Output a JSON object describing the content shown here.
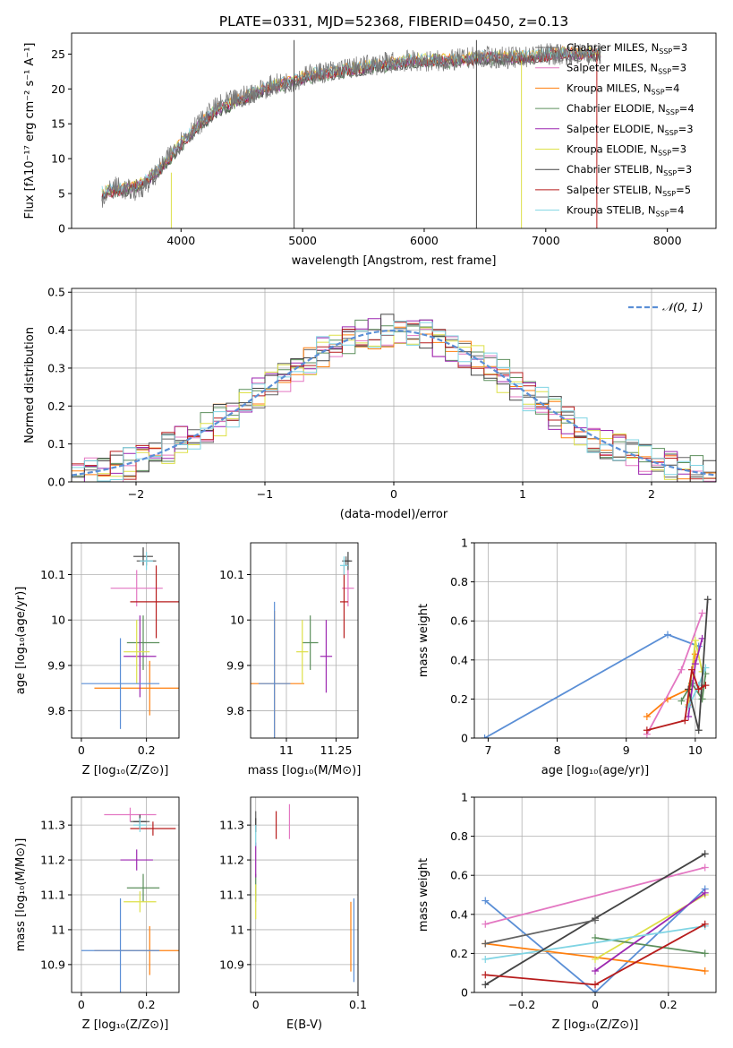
{
  "figure": {
    "title": "PLATE=0331, MJD=52368, FIBERID=0450, z=0.13"
  },
  "colors": {
    "series": [
      "#636363",
      "#e377c2",
      "#ff7f0e",
      "#5c8f5c",
      "#9c27b0",
      "#dde048",
      "#444444",
      "#b71c1c",
      "#7fd4e3"
    ],
    "normal": "#5b8fd6",
    "grid": "#b0b0b0"
  },
  "chart_data": [
    {
      "id": "spectrum",
      "type": "line",
      "title": "PLATE=0331, MJD=52368, FIBERID=0450, z=0.13",
      "xlabel": "wavelength [Angstrom, rest frame]",
      "ylabel": "Flux [fλ10⁻¹⁷ erg cm⁻² s⁻¹ A⁻¹]",
      "xlim": [
        3100,
        8400
      ],
      "ylim": [
        0,
        28
      ],
      "xticks": [
        4000,
        5000,
        6000,
        7000,
        8000
      ],
      "yticks": [
        0,
        5,
        10,
        15,
        20,
        25
      ],
      "grid": false,
      "legend_position": "right",
      "legend": [
        "Chabrier MILES, N_SSP=3",
        "Salpeter MILES, N_SSP=3",
        "Kroupa MILES, N_SSP=4",
        "Chabrier ELODIE, N_SSP=4",
        "Salpeter ELODIE, N_SSP=3",
        "Kroupa ELODIE, N_SSP=3",
        "Chabrier STELIB, N_SSP=3",
        "Salpeter STELIB, N_SSP=5",
        "Kroupa STELIB, N_SSP=4"
      ],
      "data_trace": {
        "x": [
          3350,
          3450,
          3550,
          3650,
          3750,
          3850,
          3950,
          4050,
          4150,
          4300,
          4450,
          4600,
          4750,
          4900,
          5050,
          5200,
          5400,
          5600,
          5800,
          6000,
          6200,
          6400,
          6600,
          6800,
          7000,
          7200,
          7400
        ],
        "y": [
          4.5,
          6.0,
          5.5,
          5.5,
          7.0,
          9.0,
          11.5,
          13.5,
          15.0,
          17.5,
          18.5,
          19.5,
          20.5,
          21.0,
          22.0,
          22.5,
          23.0,
          23.5,
          24.0,
          24.0,
          24.0,
          24.5,
          24.5,
          24.5,
          25.0,
          25.0,
          25.0
        ]
      },
      "model_lines": {
        "x": [
          3350,
          3500,
          3650,
          3800,
          3950,
          4100,
          4300,
          4500,
          4700,
          4900,
          5100,
          5300,
          5500,
          5700,
          5900,
          6100,
          6300,
          6500,
          6700,
          6900,
          7100,
          7300,
          7500
        ],
        "y": [
          5.0,
          5.5,
          6.0,
          8.0,
          11.0,
          14.0,
          17.0,
          18.5,
          20.0,
          21.0,
          22.0,
          22.5,
          23.0,
          23.5,
          24.0,
          24.0,
          24.0,
          24.5,
          24.5,
          24.5,
          25.0,
          25.0,
          25.0
        ]
      },
      "spikes": [
        {
          "x": 3920,
          "ytop": 8,
          "series": 5
        },
        {
          "x": 4930,
          "ytop": 27,
          "series": 6
        },
        {
          "x": 6430,
          "ytop": 27,
          "series": 6
        },
        {
          "x": 6800,
          "ytop": 24,
          "series": 5
        },
        {
          "x": 7420,
          "ytop": 25,
          "series": 7
        }
      ]
    },
    {
      "id": "residuals",
      "type": "step",
      "xlabel": "(data-model)/error",
      "ylabel": "Normed distribution",
      "xlim": [
        -2.5,
        2.5
      ],
      "ylim": [
        0,
        0.51
      ],
      "xticks": [
        -2,
        -1,
        0,
        1,
        2
      ],
      "yticks": [
        0.0,
        0.1,
        0.2,
        0.3,
        0.4,
        0.5
      ],
      "grid": true,
      "legend_position": "top-right",
      "legend": [
        "𝒩(0, 1)"
      ],
      "bin_width": 0.1,
      "bin_start": -2.5
    },
    {
      "id": "age-vs-Z",
      "type": "scatter",
      "xlabel": "Z [log₁₀(Z/Z⊙)]",
      "ylabel": "age  [log₁₀(age/yr)]",
      "xlim": [
        -0.03,
        0.3
      ],
      "ylim": [
        9.74,
        10.17
      ],
      "xticks": [
        0.0,
        0.2
      ],
      "yticks": [
        9.8,
        9.9,
        10.0,
        10.1
      ],
      "grid": true,
      "points": [
        {
          "series": 0,
          "x": 0.2,
          "y": 10.13,
          "xerr": 0.03,
          "yerr": 0.01
        },
        {
          "series": 1,
          "x": 0.17,
          "y": 10.07,
          "xerr": 0.08,
          "yerr": 0.04
        },
        {
          "series": 2,
          "x": 0.21,
          "y": 9.85,
          "xerr": 0.17,
          "yerr": 0.06
        },
        {
          "series": 3,
          "x": 0.19,
          "y": 9.95,
          "xerr": 0.05,
          "yerr": 0.06
        },
        {
          "series": 4,
          "x": 0.18,
          "y": 9.92,
          "xerr": 0.05,
          "yerr": 0.09
        },
        {
          "series": 5,
          "x": 0.17,
          "y": 9.93,
          "xerr": 0.04,
          "yerr": 0.07
        },
        {
          "series": 6,
          "x": 0.19,
          "y": 10.14,
          "xerr": 0.03,
          "yerr": 0.02
        },
        {
          "series": 7,
          "x": 0.23,
          "y": 10.04,
          "xerr": 0.08,
          "yerr": 0.08
        },
        {
          "series": 8,
          "x": 0.2,
          "y": 10.13,
          "xerr": 0.02,
          "yerr": 0.02
        },
        {
          "series": -1,
          "x": 0.12,
          "y": 9.86,
          "xerr": 0.12,
          "yerr": 0.1
        }
      ]
    },
    {
      "id": "age-vs-mass",
      "type": "scatter",
      "xlabel": "mass [log₁₀(M/M⊙)]",
      "ylabel": "",
      "xlim": [
        10.82,
        11.36
      ],
      "ylim": [
        9.74,
        10.17
      ],
      "xticks": [
        11.0,
        11.25
      ],
      "yticks": [
        9.8,
        9.9,
        10.0,
        10.1
      ],
      "grid": true,
      "points": [
        {
          "series": 0,
          "x": 11.3,
          "y": 10.13,
          "xerr": 0.02,
          "yerr": 0.01
        },
        {
          "series": 1,
          "x": 11.31,
          "y": 10.07,
          "xerr": 0.03,
          "yerr": 0.04
        },
        {
          "series": 2,
          "x": 10.94,
          "y": 9.86,
          "xerr": 0.15,
          "yerr": 0.16
        },
        {
          "series": 3,
          "x": 11.12,
          "y": 9.95,
          "xerr": 0.04,
          "yerr": 0.06
        },
        {
          "series": 4,
          "x": 11.2,
          "y": 9.92,
          "xerr": 0.03,
          "yerr": 0.08
        },
        {
          "series": 5,
          "x": 11.08,
          "y": 9.93,
          "xerr": 0.03,
          "yerr": 0.07
        },
        {
          "series": 6,
          "x": 11.31,
          "y": 10.13,
          "xerr": 0.02,
          "yerr": 0.02
        },
        {
          "series": 7,
          "x": 11.29,
          "y": 10.04,
          "xerr": 0.02,
          "yerr": 0.08
        },
        {
          "series": 8,
          "x": 11.29,
          "y": 10.12,
          "xerr": 0.02,
          "yerr": 0.02
        },
        {
          "series": -1,
          "x": 10.94,
          "y": 9.86,
          "xerr": 0.08,
          "yerr": 0.18
        }
      ]
    },
    {
      "id": "mass-weight-vs-age",
      "type": "line",
      "xlabel": "age  [log₁₀(age/yr)]",
      "ylabel": "mass weight",
      "xlim": [
        6.8,
        10.3
      ],
      "ylim": [
        0,
        1.0
      ],
      "xticks": [
        7,
        8,
        9,
        10
      ],
      "yticks": [
        0.0,
        0.2,
        0.4,
        0.6,
        0.8,
        1.0
      ],
      "grid": true,
      "series": [
        {
          "series": -1,
          "x": [
            6.95,
            9.6,
            10.05
          ],
          "y": [
            0.0,
            0.53,
            0.47
          ]
        },
        {
          "series": 2,
          "x": [
            9.3,
            9.6,
            9.9,
            10.0
          ],
          "y": [
            0.11,
            0.2,
            0.25,
            0.43
          ]
        },
        {
          "series": 1,
          "x": [
            9.3,
            9.8,
            10.1
          ],
          "y": [
            0.02,
            0.35,
            0.64
          ]
        },
        {
          "series": 5,
          "x": [
            9.9,
            10.0,
            10.1
          ],
          "y": [
            0.17,
            0.5,
            0.34
          ]
        },
        {
          "series": 3,
          "x": [
            9.8,
            9.95,
            10.1,
            10.15
          ],
          "y": [
            0.19,
            0.28,
            0.2,
            0.33
          ]
        },
        {
          "series": 4,
          "x": [
            9.9,
            10.0,
            10.1
          ],
          "y": [
            0.11,
            0.38,
            0.51
          ]
        },
        {
          "series": 8,
          "x": [
            9.9,
            10.05,
            10.15
          ],
          "y": [
            0.16,
            0.27,
            0.36
          ]
        },
        {
          "series": 6,
          "x": [
            9.9,
            10.05,
            10.18
          ],
          "y": [
            0.25,
            0.04,
            0.71
          ]
        },
        {
          "series": 7,
          "x": [
            9.3,
            9.85,
            9.95,
            10.05,
            10.15
          ],
          "y": [
            0.04,
            0.09,
            0.35,
            0.25,
            0.27
          ]
        }
      ]
    },
    {
      "id": "mass-vs-Z",
      "type": "scatter",
      "xlabel": "Z [log₁₀(Z/Z⊙)]",
      "ylabel": "mass [log₁₀(M/M⊙)]",
      "xlim": [
        -0.03,
        0.3
      ],
      "ylim": [
        10.82,
        11.38
      ],
      "xticks": [
        0.0,
        0.2
      ],
      "yticks": [
        10.9,
        11.0,
        11.1,
        11.2,
        11.3
      ],
      "grid": true,
      "points": [
        {
          "series": 0,
          "x": 0.18,
          "y": 11.31,
          "xerr": 0.03,
          "yerr": 0.02
        },
        {
          "series": 1,
          "x": 0.15,
          "y": 11.33,
          "xerr": 0.08,
          "yerr": 0.02
        },
        {
          "series": 2,
          "x": 0.21,
          "y": 10.94,
          "xerr": 0.17,
          "yerr": 0.07
        },
        {
          "series": 3,
          "x": 0.19,
          "y": 11.12,
          "xerr": 0.05,
          "yerr": 0.04
        },
        {
          "series": 4,
          "x": 0.17,
          "y": 11.2,
          "xerr": 0.05,
          "yerr": 0.03
        },
        {
          "series": 5,
          "x": 0.18,
          "y": 11.08,
          "xerr": 0.05,
          "yerr": 0.03
        },
        {
          "series": 6,
          "x": 0.18,
          "y": 11.31,
          "xerr": 0.02,
          "yerr": 0.02
        },
        {
          "series": 7,
          "x": 0.22,
          "y": 11.29,
          "xerr": 0.07,
          "yerr": 0.02
        },
        {
          "series": 8,
          "x": 0.18,
          "y": 11.3,
          "xerr": 0.02,
          "yerr": 0.02
        },
        {
          "series": -1,
          "x": 0.12,
          "y": 10.94,
          "xerr": 0.12,
          "yerr": 0.15
        }
      ]
    },
    {
      "id": "mass-vs-EBV",
      "type": "scatter",
      "xlabel": "E(B-V)",
      "ylabel": "",
      "xlim": [
        -0.005,
        0.1
      ],
      "ylim": [
        10.82,
        11.38
      ],
      "xticks": [
        0.0,
        0.1
      ],
      "yticks": [
        10.9,
        11.0,
        11.1,
        11.2,
        11.3
      ],
      "grid": true,
      "points": [
        {
          "series": 0,
          "x": 0.0,
          "y": 11.31,
          "xerr": 0.0,
          "yerr": 0.03
        },
        {
          "series": 1,
          "x": 0.033,
          "y": 11.31,
          "xerr": 0.0,
          "yerr": 0.05
        },
        {
          "series": 2,
          "x": 0.093,
          "y": 10.98,
          "xerr": 0.0,
          "yerr": 0.1
        },
        {
          "series": 3,
          "x": 0.0,
          "y": 11.12,
          "xerr": 0.0,
          "yerr": 0.04
        },
        {
          "series": 4,
          "x": 0.0,
          "y": 11.2,
          "xerr": 0.0,
          "yerr": 0.05
        },
        {
          "series": 5,
          "x": 0.0,
          "y": 11.08,
          "xerr": 0.0,
          "yerr": 0.05
        },
        {
          "series": 6,
          "x": 0.0,
          "y": 11.3,
          "xerr": 0.0,
          "yerr": 0.02
        },
        {
          "series": 7,
          "x": 0.02,
          "y": 11.3,
          "xerr": 0.0,
          "yerr": 0.04
        },
        {
          "series": 8,
          "x": 0.0,
          "y": 11.27,
          "xerr": 0.0,
          "yerr": 0.03
        },
        {
          "series": -1,
          "x": 0.096,
          "y": 10.97,
          "xerr": 0.0,
          "yerr": 0.12
        }
      ]
    },
    {
      "id": "mass-weight-vs-Z",
      "type": "line",
      "xlabel": "Z [log₁₀(Z/Z⊙)]",
      "ylabel": "mass weight",
      "xlim": [
        -0.33,
        0.33
      ],
      "ylim": [
        0,
        1.0
      ],
      "xticks": [
        -0.2,
        0.0,
        0.2
      ],
      "yticks": [
        0.0,
        0.2,
        0.4,
        0.6,
        0.8,
        1.0
      ],
      "grid": true,
      "series": [
        {
          "series": -1,
          "x": [
            -0.3,
            0.0,
            0.3
          ],
          "y": [
            0.47,
            0.0,
            0.53
          ]
        },
        {
          "series": 2,
          "x": [
            -0.3,
            0.3
          ],
          "y": [
            0.25,
            0.11
          ]
        },
        {
          "series": 1,
          "x": [
            -0.3,
            0.3
          ],
          "y": [
            0.35,
            0.64
          ]
        },
        {
          "series": 5,
          "x": [
            0.0,
            0.3
          ],
          "y": [
            0.17,
            0.5
          ]
        },
        {
          "series": 3,
          "x": [
            0.0,
            0.3
          ],
          "y": [
            0.28,
            0.2
          ]
        },
        {
          "series": 4,
          "x": [
            0.0,
            0.3
          ],
          "y": [
            0.11,
            0.51
          ]
        },
        {
          "series": 8,
          "x": [
            -0.3,
            0.3
          ],
          "y": [
            0.17,
            0.34
          ]
        },
        {
          "series": 6,
          "x": [
            -0.3,
            0.0,
            0.3
          ],
          "y": [
            0.04,
            0.38,
            0.71
          ]
        },
        {
          "series": 7,
          "x": [
            -0.3,
            0.0,
            0.3
          ],
          "y": [
            0.09,
            0.04,
            0.35
          ]
        },
        {
          "series": 0,
          "x": [
            -0.3,
            0.0
          ],
          "y": [
            0.25,
            0.37
          ]
        }
      ]
    }
  ]
}
